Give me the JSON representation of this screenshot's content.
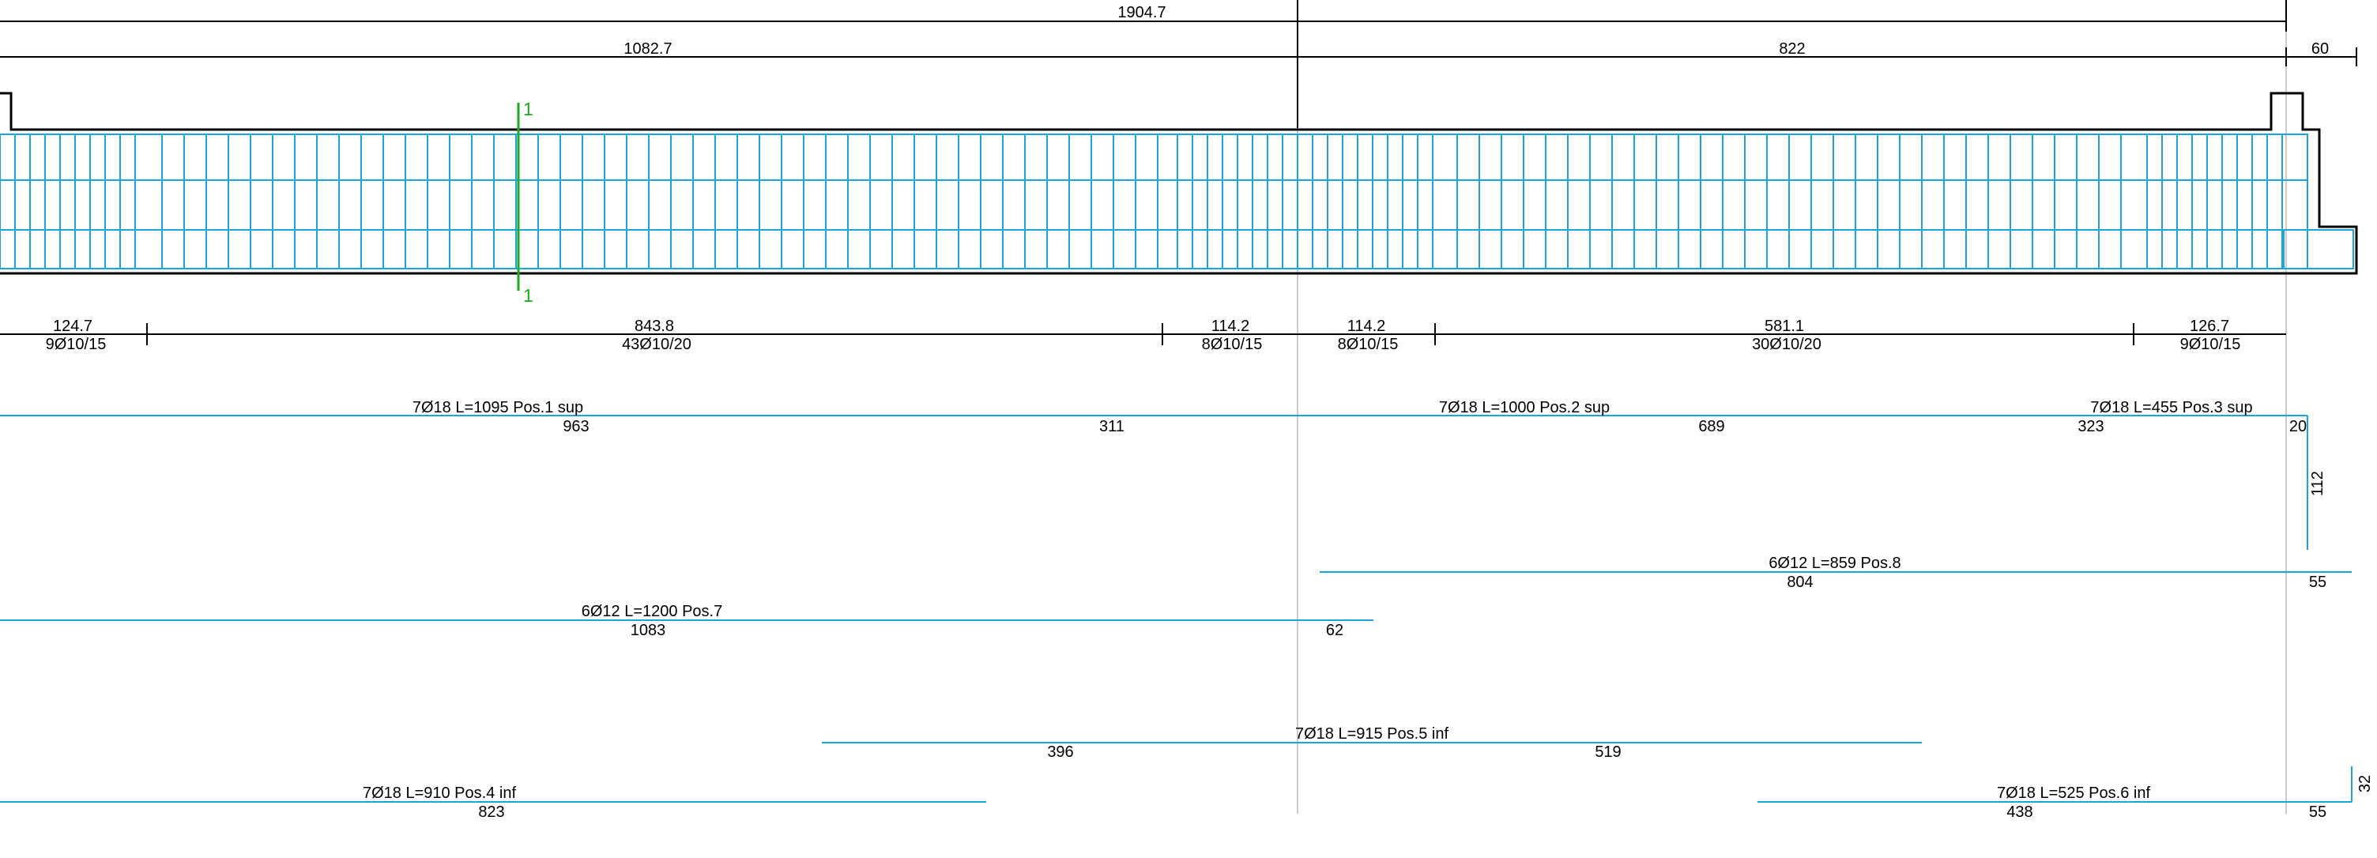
{
  "colors": {
    "line": "#000000",
    "rebar": "#1aa6dc",
    "section": "#1fa81f",
    "guide": "#cccccc"
  },
  "dimensions": {
    "top_total": "1904.7",
    "span_left": "1082.7",
    "span_right": "822",
    "cantilever": "60"
  },
  "section_marker": {
    "top": "1",
    "bottom": "1"
  },
  "stirrup_zones": [
    {
      "length": "124.7",
      "spec": "9Ø10/15"
    },
    {
      "length": "843.8",
      "spec": "43Ø10/20"
    },
    {
      "length": "114.2",
      "spec": "8Ø10/15"
    },
    {
      "length": "114.2",
      "spec": "8Ø10/15"
    },
    {
      "length": "581.1",
      "spec": "30Ø10/20"
    },
    {
      "length": "126.7",
      "spec": "9Ø10/15"
    }
  ],
  "bars": {
    "pos1": {
      "label": "7Ø18 L=1095 Pos.1 sup",
      "seg_a": "963",
      "seg_b": "311"
    },
    "pos2": {
      "label": "7Ø18 L=1000 Pos.2 sup",
      "seg_a": "689"
    },
    "pos3": {
      "label": "7Ø18 L=455 Pos.3 sup",
      "seg_a": "323",
      "hook": "20",
      "leg": "112"
    },
    "pos8": {
      "label": "6Ø12 L=859 Pos.8",
      "seg_a": "804",
      "end": "55"
    },
    "pos7": {
      "label": "6Ø12 L=1200 Pos.7",
      "seg_a": "1083",
      "end": "62"
    },
    "pos5": {
      "label": "7Ø18 L=915 Pos.5 inf",
      "seg_a": "396",
      "seg_b": "519"
    },
    "pos4": {
      "label": "7Ø18 L=910 Pos.4 inf",
      "seg_a": "823"
    },
    "pos6": {
      "label": "7Ø18 L=525 Pos.6 inf",
      "seg_a": "438",
      "end": "55",
      "leg": "32"
    }
  }
}
